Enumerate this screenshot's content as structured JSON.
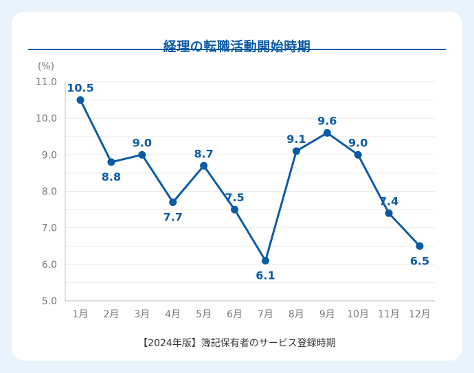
{
  "title": "経理の転職活動開始時期",
  "footer": "【2024年版】簿記保有者のサービス登録時期",
  "colors": {
    "accent": "#0a5aa6",
    "grid": "#e6e6e6",
    "axis_text": "#777777",
    "background": "#e9f3fb"
  },
  "chart_data": {
    "type": "line",
    "ylabel": "(%)",
    "ylim": [
      5.0,
      11.0
    ],
    "yticks": [
      "5.0",
      "6.0",
      "7.0",
      "8.0",
      "9.0",
      "10.0",
      "11.0"
    ],
    "categories": [
      "1月",
      "2月",
      "3月",
      "4月",
      "5月",
      "6月",
      "7月",
      "8月",
      "9月",
      "10月",
      "11月",
      "12月"
    ],
    "series": [
      {
        "values": [
          10.5,
          8.8,
          9.0,
          7.7,
          8.7,
          7.5,
          6.1,
          9.1,
          9.6,
          9.0,
          7.4,
          6.5
        ],
        "labels": [
          "10.5",
          "8.8",
          "9.0",
          "7.7",
          "8.7",
          "7.5",
          "6.1",
          "9.1",
          "9.6",
          "9.0",
          "7.4",
          "6.5"
        ],
        "color": "#0a5aa6"
      }
    ],
    "grid": true,
    "legend": false
  }
}
